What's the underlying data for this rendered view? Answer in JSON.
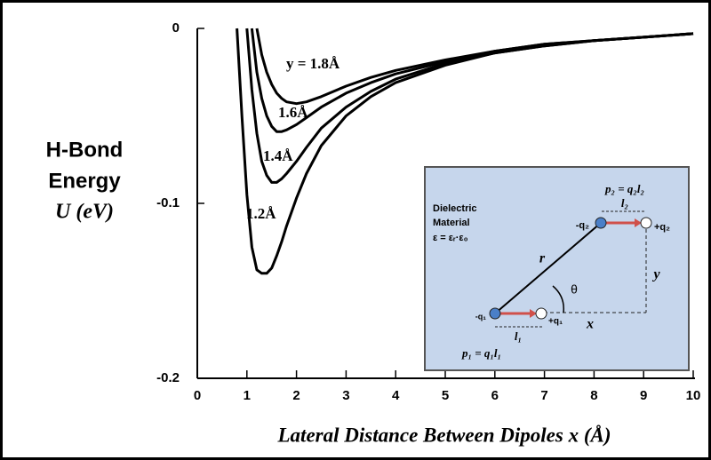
{
  "chart_data": {
    "type": "line",
    "ylabel": [
      "H-Bond",
      "Energy",
      "U (eV)"
    ],
    "xlabel": "Lateral Distance Between Dipoles x (Å)",
    "x": [
      0.8,
      0.9,
      1.0,
      1.1,
      1.2,
      1.3,
      1.4,
      1.5,
      1.6,
      1.7,
      1.8,
      2.0,
      2.2,
      2.5,
      3.0,
      3.5,
      4.0,
      5.0,
      6.0,
      7.0,
      8.0,
      9.0,
      10.0
    ],
    "series": [
      {
        "name": "y = 1.8Å",
        "color": "#000000",
        "values": [
          null,
          null,
          null,
          null,
          0,
          -0.015,
          -0.025,
          -0.032,
          -0.037,
          -0.04,
          -0.042,
          -0.043,
          -0.042,
          -0.039,
          -0.033,
          -0.028,
          -0.024,
          -0.018,
          -0.013,
          -0.009,
          -0.007,
          -0.005,
          -0.003
        ]
      },
      {
        "name": "1.6Å",
        "color": "#000000",
        "values": [
          null,
          null,
          null,
          0,
          -0.025,
          -0.04,
          -0.05,
          -0.056,
          -0.059,
          -0.059,
          -0.058,
          -0.055,
          -0.051,
          -0.045,
          -0.037,
          -0.031,
          -0.026,
          -0.019,
          -0.013,
          -0.009,
          -0.007,
          -0.005,
          -0.003
        ]
      },
      {
        "name": "1.4Å",
        "color": "#000000",
        "values": [
          null,
          null,
          0,
          -0.035,
          -0.06,
          -0.076,
          -0.084,
          -0.088,
          -0.088,
          -0.086,
          -0.083,
          -0.076,
          -0.068,
          -0.057,
          -0.045,
          -0.036,
          -0.029,
          -0.02,
          -0.014,
          -0.01,
          -0.007,
          -0.005,
          -0.003
        ]
      },
      {
        "name": "1.2Å",
        "color": "#000000",
        "values": [
          0,
          -0.05,
          -0.095,
          -0.125,
          -0.138,
          -0.14,
          -0.14,
          -0.137,
          -0.13,
          -0.122,
          -0.113,
          -0.097,
          -0.083,
          -0.067,
          -0.05,
          -0.039,
          -0.031,
          -0.021,
          -0.014,
          -0.01,
          -0.007,
          -0.005,
          -0.003
        ]
      }
    ],
    "xlim": [
      0,
      10
    ],
    "xticks": [
      0,
      1,
      2,
      3,
      4,
      5,
      6,
      7,
      8,
      9,
      10
    ],
    "ylim": [
      -0.2,
      0
    ],
    "yticks": [
      0,
      -0.1,
      -0.2
    ],
    "grid": false,
    "inset": {
      "material": [
        "Dielectric",
        "Material",
        "ε = εᵣ·ε₀"
      ],
      "p2": "p₂ = q₂l₂",
      "l2": "l₂",
      "minus_q2": "-q₂",
      "plus_q2": "+q₂",
      "r": "r",
      "theta": "θ",
      "y": "y",
      "minus_q1": "-q₁",
      "plus_q1": "+q₁",
      "l1": "l₁",
      "x": "x",
      "p1": "p₁ = q₁l₁"
    }
  }
}
